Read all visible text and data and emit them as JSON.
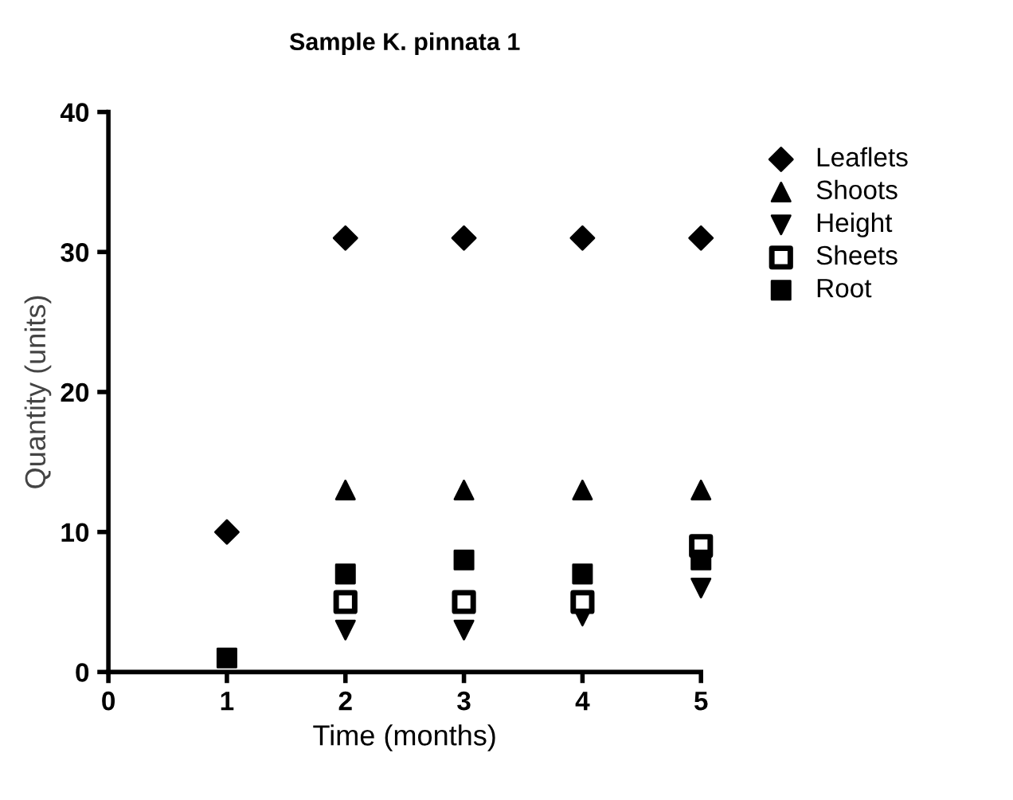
{
  "chart_data": {
    "type": "scatter",
    "title": "Sample K. pinnata 1",
    "xlabel": "Time (months)",
    "ylabel": "Quantity (units)",
    "x": [
      1,
      2,
      3,
      4,
      5
    ],
    "series": [
      {
        "name": "Leaflets",
        "color": "#000000",
        "marker": "diamond",
        "values": [
          10,
          31,
          31,
          31,
          31
        ]
      },
      {
        "name": "Shoots",
        "color": "#000000",
        "marker": "triangle",
        "values": [
          null,
          13,
          13,
          13,
          13
        ]
      },
      {
        "name": "Height",
        "color": "#000000",
        "values": [
          null,
          3,
          3,
          4,
          6
        ]
      },
      {
        "name": "Sheets",
        "color": "#000000",
        "values": [
          null,
          5,
          5,
          5,
          9
        ]
      },
      {
        "name": "Root",
        "color": "#000000",
        "marker": "square",
        "values": [
          1,
          7,
          8,
          7,
          8
        ]
      }
    ],
    "xlim": [
      0,
      5
    ],
    "xticks": [
      0,
      1,
      2,
      3,
      4,
      5
    ],
    "ylim": [
      0,
      40
    ],
    "yticks": [
      0,
      10,
      20,
      30,
      40
    ],
    "grid": false,
    "legend": "right"
  }
}
